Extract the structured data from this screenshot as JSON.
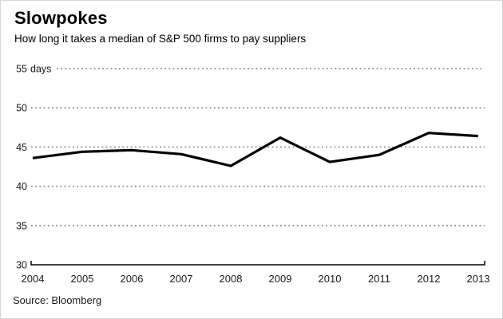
{
  "header": {
    "title": "Slowpokes",
    "subtitle": "How long it takes a median of S&P 500 firms to pay suppliers"
  },
  "footer": {
    "source": "Source: Bloomberg"
  },
  "chart_data": {
    "type": "line",
    "title": "Slowpokes",
    "subtitle": "How long it takes a median of S&P 500 firms to pay suppliers",
    "x": [
      2004,
      2005,
      2006,
      2007,
      2008,
      2009,
      2010,
      2011,
      2012,
      2013
    ],
    "values": [
      43.6,
      44.4,
      44.6,
      44.1,
      42.6,
      46.2,
      43.1,
      44.0,
      46.8,
      46.4
    ],
    "ylim": [
      30,
      55
    ],
    "yticks": [
      55,
      50,
      45,
      40,
      35,
      30
    ],
    "y_unit": "days",
    "y_unit_on_first_tick_only": true,
    "grid": "horizontal dotted, no line at bottom axis level",
    "legend": "none",
    "line_color": "#000000",
    "grid_color": "#8f8f8f",
    "axis_color": "#000000",
    "tick_label_color": "#1a1a1a",
    "source": "Source: Bloomberg"
  }
}
